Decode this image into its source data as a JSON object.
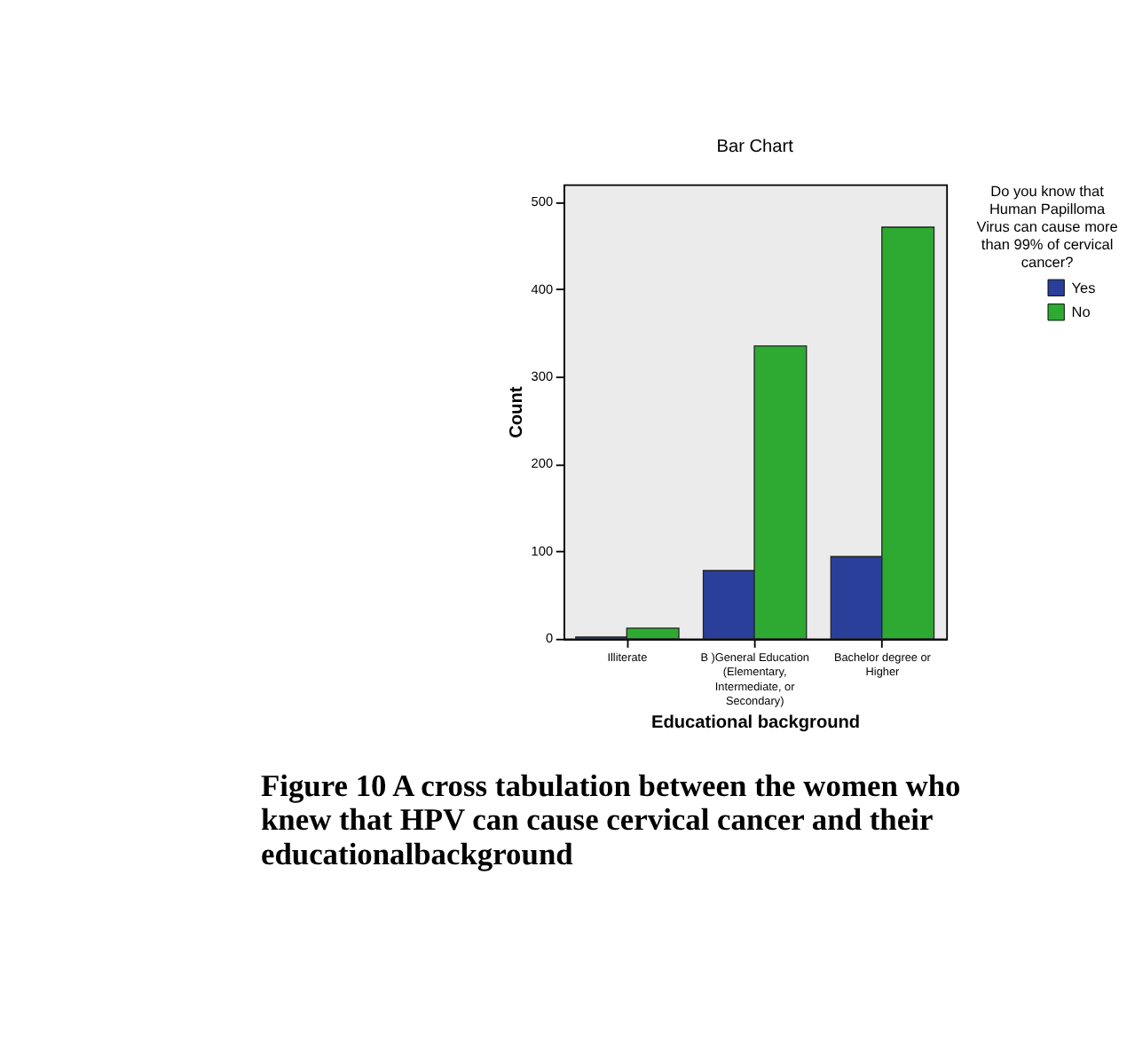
{
  "chart_data": {
    "type": "bar",
    "title": "Bar Chart",
    "categories": [
      "Illiterate",
      "B )General Education (Elementary, Intermediate, or Secondary)",
      "Bachelor degree or Higher"
    ],
    "series": [
      {
        "name": "Yes",
        "color": "#2a3f9a",
        "values": [
          2,
          78,
          94
        ]
      },
      {
        "name": "No",
        "color": "#2eaa33",
        "values": [
          12,
          335,
          471
        ]
      }
    ],
    "xlabel": "Educational background",
    "ylabel": "Count",
    "legend_title": "Do you know that Human Papilloma Virus can cause more than 99% of cervical cancer?",
    "ylim": [
      0,
      520
    ],
    "yticks": [
      0,
      100,
      200,
      300,
      400,
      500
    ],
    "grid": false,
    "legend": "top right",
    "annotations": [
      "Figure 10 A cross tabulation between the women who knew that HPV can cause cervical cancer and their educationalbackground"
    ]
  }
}
